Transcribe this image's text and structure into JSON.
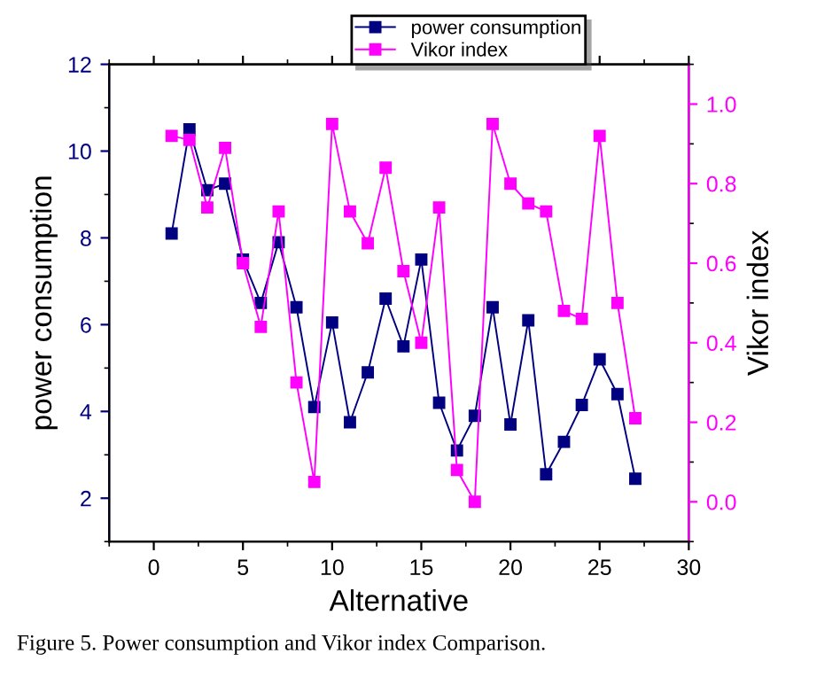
{
  "chart_data": {
    "type": "line",
    "xlabel": "Alternative",
    "ylabel": "power consumption",
    "y2label": "Vikor index",
    "marker": "square",
    "line_style": "solid",
    "legend": "top",
    "grid": false,
    "x": [
      1,
      2,
      3,
      4,
      5,
      6,
      7,
      8,
      9,
      10,
      11,
      12,
      13,
      14,
      15,
      16,
      17,
      18,
      19,
      20,
      21,
      22,
      23,
      24,
      25,
      26,
      27
    ],
    "xlim": [
      -2.5,
      30
    ],
    "xticks": [
      0,
      5,
      10,
      15,
      20,
      25,
      30
    ],
    "ylim": [
      1,
      12
    ],
    "yticks": [
      2,
      4,
      6,
      8,
      10,
      12
    ],
    "y2lim": [
      -0.1,
      1.1
    ],
    "y2ticks": [
      {
        "value": 0,
        "label": "0.0"
      },
      {
        "value": 0.2,
        "label": "0.2"
      },
      {
        "value": 0.4,
        "label": "0.4"
      },
      {
        "value": 0.6,
        "label": "0.6"
      },
      {
        "value": 0.8,
        "label": "0.8"
      },
      {
        "value": 1,
        "label": "1.0"
      }
    ],
    "series": [
      {
        "name": "power consumption",
        "color": "#000080",
        "values": [
          8.1,
          10.5,
          9.1,
          9.25,
          7.5,
          6.5,
          7.9,
          6.4,
          4.1,
          6.05,
          3.75,
          4.9,
          6.6,
          5.5,
          7.5,
          4.2,
          3.1,
          3.9,
          6.4,
          3.7,
          6.1,
          2.55,
          3.3,
          4.15,
          5.2,
          4.4,
          2.45
        ]
      },
      {
        "name": "Vikor index",
        "color": "#ff00ff",
        "axis": "y2",
        "values": [
          0.92,
          0.91,
          0.74,
          0.89,
          0.6,
          0.44,
          0.73,
          0.3,
          0.05,
          0.95,
          0.73,
          0.65,
          0.84,
          0.58,
          0.4,
          0.74,
          0.08,
          0.0,
          0.95,
          0.8,
          0.75,
          0.73,
          0.48,
          0.46,
          0.92,
          0.5,
          0.21
        ]
      }
    ],
    "annotations": [
      "Figure 5. Power consumption and Vikor index Comparison."
    ]
  }
}
